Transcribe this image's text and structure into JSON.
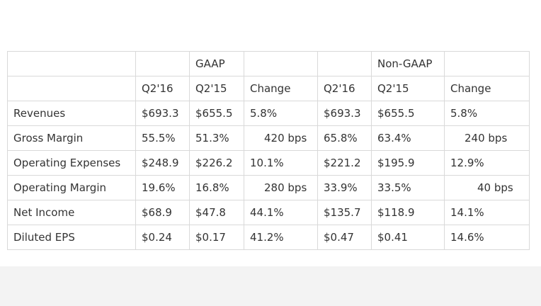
{
  "table": {
    "group_headers": {
      "gaap": "GAAP",
      "non_gaap": "Non-GAAP"
    },
    "column_headers": [
      "Q2'16",
      "Q2'15",
      "Change",
      "Q2'16",
      "Q2'15",
      "Change"
    ],
    "rows": [
      {
        "label": "Revenues",
        "cells": [
          "$693.3",
          "$655.5",
          "5.8%",
          "$693.3",
          "$655.5",
          "5.8%"
        ]
      },
      {
        "label": "Gross Margin",
        "cells": [
          "55.5%",
          "51.3%",
          "420 bps",
          "65.8%",
          "63.4%",
          "240 bps"
        ]
      },
      {
        "label": "Operating Expenses",
        "cells": [
          "$248.9",
          "$226.2",
          "10.1%",
          "$221.2",
          "$195.9",
          "12.9%"
        ]
      },
      {
        "label": "Operating Margin",
        "cells": [
          "19.6%",
          "16.8%",
          "280 bps",
          "33.9%",
          "33.5%",
          "40 bps"
        ]
      },
      {
        "label": "Net Income",
        "cells": [
          "$68.9",
          "$47.8",
          "44.1%",
          "$135.7",
          "$118.9",
          "14.1%"
        ]
      },
      {
        "label": "Diluted EPS",
        "cells": [
          "$0.24",
          "$0.17",
          "41.2%",
          "$0.47",
          "$0.41",
          "14.6%"
        ]
      }
    ]
  }
}
